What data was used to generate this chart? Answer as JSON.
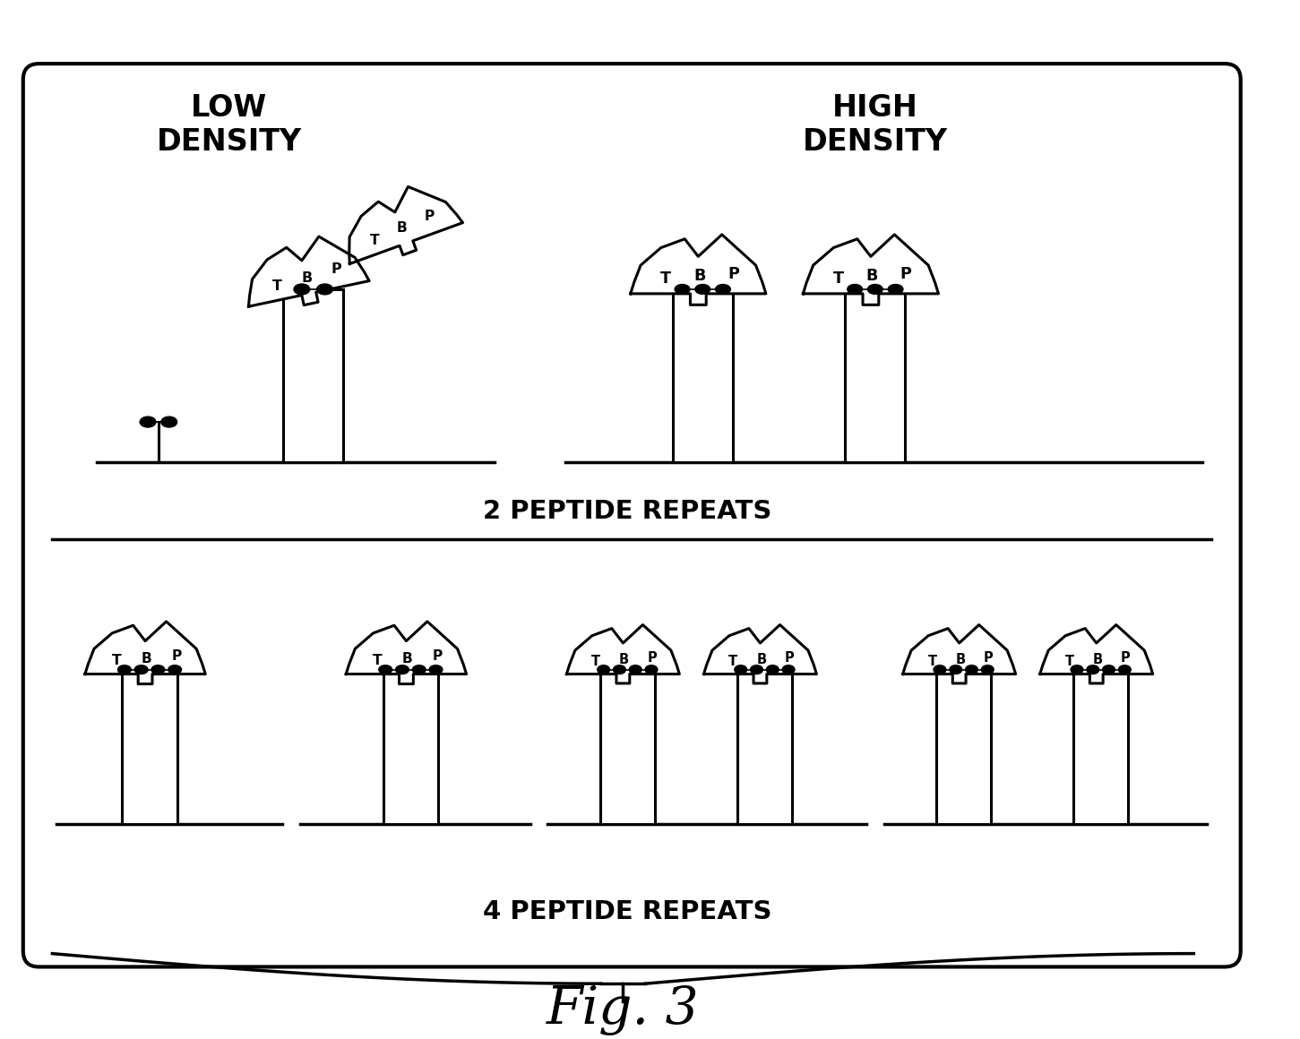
{
  "title": "Fig. 3",
  "label_low_density": "LOW\nDENSITY",
  "label_high_density": "HIGH\nDENSITY",
  "label_2_peptide": "2 PEPTIDE REPEATS",
  "label_4_peptide": "4 PEPTIDE REPEATS",
  "bg_color": "#ffffff",
  "line_color": "#000000",
  "title_fontsize": 42,
  "label_fontsize": 22,
  "section_label_fontsize": 20
}
